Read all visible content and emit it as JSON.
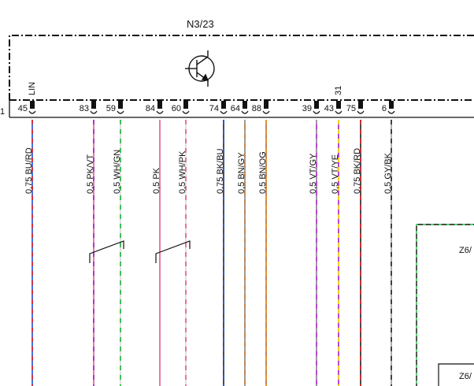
{
  "component": {
    "name": "N3/23",
    "symbol": "transistor-icon"
  },
  "edge_label_left": "1",
  "pins": [
    {
      "number": "45",
      "tag": "LIN",
      "wire": "0,75 BU/RD",
      "colors": [
        "#1f4fd6",
        "#e02020"
      ]
    },
    {
      "number": "83",
      "tag": "",
      "wire": "0,5 PK/VT",
      "colors": [
        "#e8558f",
        "#a020c0"
      ]
    },
    {
      "number": "59",
      "tag": "",
      "wire": "0,5 WH/GN",
      "colors": [
        "#ffffff",
        "#21b13a"
      ]
    },
    {
      "number": "84",
      "tag": "",
      "wire": "0,5 PK",
      "colors": [
        "#e8558f"
      ]
    },
    {
      "number": "60",
      "tag": "",
      "wire": "0,5 WH/PK",
      "colors": [
        "#ffffff",
        "#e8558f"
      ]
    },
    {
      "number": "74",
      "tag": "",
      "wire": "0,75 BK/BU",
      "colors": [
        "#202020",
        "#1f4fd6"
      ]
    },
    {
      "number": "64",
      "tag": "",
      "wire": "0,5 BN/GY",
      "colors": [
        "#b06a2a",
        "#9a9a9a"
      ]
    },
    {
      "number": "88",
      "tag": "",
      "wire": "0,5 BN/OG",
      "colors": [
        "#b06a2a",
        "#f08a1a"
      ]
    },
    {
      "number": "39",
      "tag": "",
      "wire": "0,5 VT/GY",
      "colors": [
        "#a020c0",
        "#9a9a9a"
      ]
    },
    {
      "number": "43",
      "tag": "31",
      "wire": "0,5 VT/YE",
      "colors": [
        "#a020c0",
        "#f2e200"
      ]
    },
    {
      "number": "75",
      "tag": "",
      "wire": "0,75 BK/RD",
      "colors": [
        "#202020",
        "#e02020"
      ]
    },
    {
      "number": "6",
      "tag": "",
      "wire": "0,5 GY/BK",
      "colors": [
        "#9a9a9a",
        "#202020"
      ]
    }
  ],
  "side_component": {
    "label_top": "Z6/",
    "label_bottom": "Z6/"
  }
}
